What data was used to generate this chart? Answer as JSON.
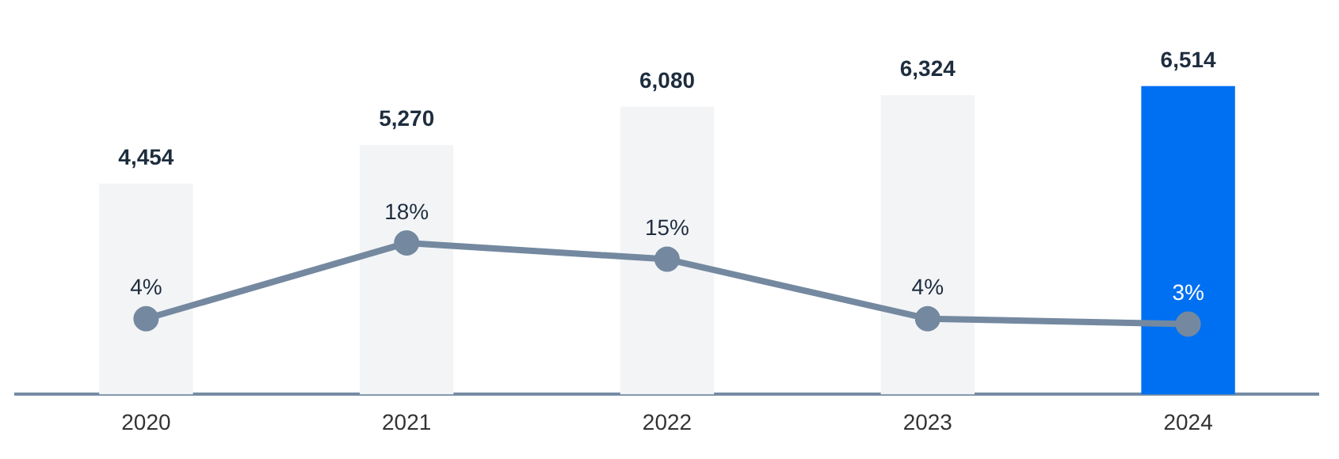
{
  "chart_data": {
    "type": "bar",
    "categories": [
      "2020",
      "2021",
      "2022",
      "2023",
      "2024"
    ],
    "tick_labels": "x",
    "grid": false,
    "legend": false,
    "marker": "circle",
    "line_style": "solid",
    "series": [
      {
        "colors": [
          "#f3f4f6",
          "#f3f4f6",
          "#f3f4f6",
          "#f3f4f6",
          "#0070f2"
        ],
        "values": [
          4454,
          5270,
          6080,
          6324,
          6514
        ],
        "value_labels": [
          "4,454",
          "5,270",
          "6,080",
          "6,324",
          "6,514"
        ]
      },
      {
        "type": "line",
        "axis": "y2",
        "color": "#7489a0",
        "values": [
          4,
          18,
          15,
          4,
          3
        ],
        "value_labels": [
          "4%",
          "18%",
          "15%",
          "4%",
          "3%"
        ]
      }
    ]
  }
}
